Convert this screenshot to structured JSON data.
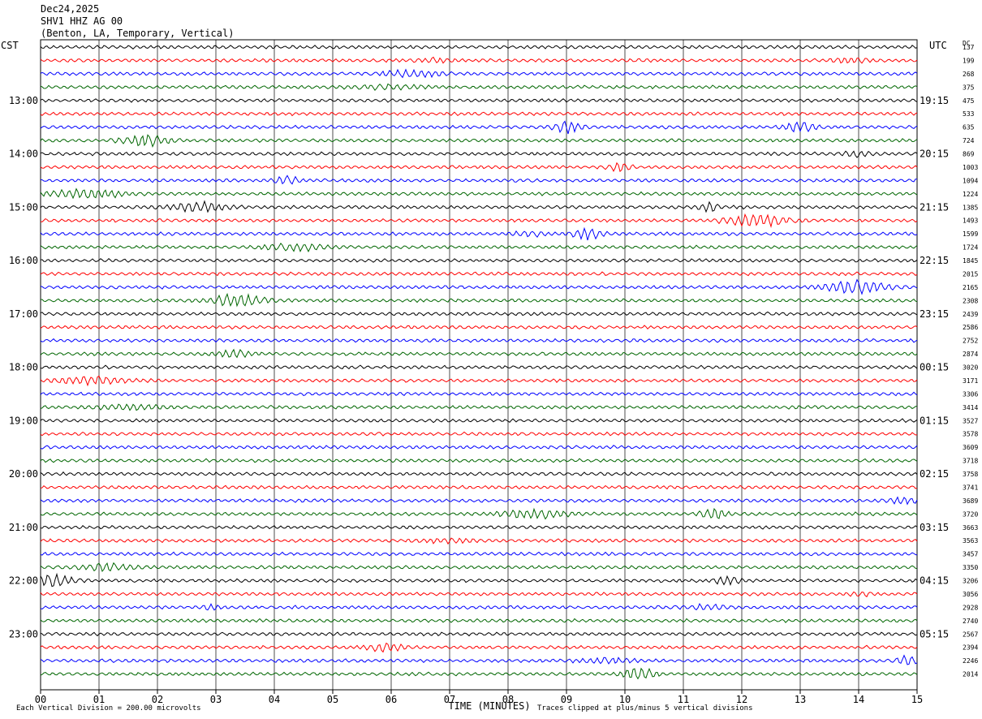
{
  "header": {
    "date": "Dec24,2025",
    "station": "SHV1 HHZ AG 00",
    "location": "(Benton, LA, Temporary, Vertical)"
  },
  "footer": {
    "scale_note": "Each Vertical Division =  200.00 microvolts",
    "clip_note": "Traces clipped at plus/minus 5 vertical divisions"
  },
  "chart_data": {
    "type": "line",
    "title": "SHV1 HHZ AG 00",
    "xlabel": "TIME (MINUTES)",
    "x_ticks": [
      "00",
      "01",
      "02",
      "03",
      "04",
      "05",
      "06",
      "07",
      "08",
      "09",
      "10",
      "11",
      "12",
      "13",
      "14",
      "15"
    ],
    "xlim": [
      0,
      15
    ],
    "left_axis_label": "CST",
    "right_axis_label": "UTC",
    "dc_label": "DC",
    "left_hour_labels": [
      "13:00",
      "14:00",
      "15:00",
      "16:00",
      "17:00",
      "18:00",
      "19:00",
      "20:00",
      "21:00",
      "22:00",
      "23:00"
    ],
    "right_hour_labels": [
      "19:15",
      "20:15",
      "21:15",
      "22:15",
      "23:15",
      "00:15",
      "01:15",
      "02:15",
      "03:15",
      "04:15",
      "05:15"
    ],
    "trace_colors": [
      "#000000",
      "#ff0000",
      "#0000ff",
      "#006600"
    ],
    "dc_offsets": [
      "137",
      "199",
      "268",
      "375",
      "475",
      "533",
      "635",
      "724",
      "869",
      "1003",
      "1094",
      "1224",
      "1385",
      "1493",
      "1599",
      "1724",
      "1845",
      "2015",
      "2165",
      "2308",
      "2439",
      "2586",
      "2752",
      "2874",
      "3020",
      "3171",
      "3306",
      "3414",
      "3527",
      "3578",
      "3609",
      "3718",
      "3758",
      "3741",
      "3689",
      "3720",
      "3663",
      "3563",
      "3457",
      "3350",
      "3206",
      "3056",
      "2928",
      "2740",
      "2567",
      "2394",
      "2246",
      "2014"
    ],
    "trace_count": 48,
    "minutes_per_trace": 15
  }
}
